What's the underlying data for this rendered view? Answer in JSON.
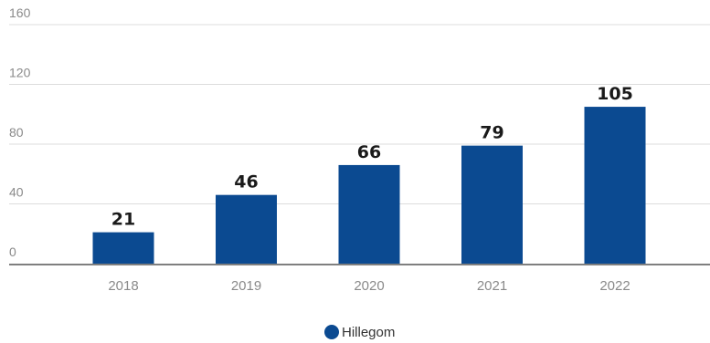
{
  "chart_data": {
    "type": "bar",
    "categories": [
      "2018",
      "2019",
      "2020",
      "2021",
      "2022"
    ],
    "series": [
      {
        "name": "Hillegom",
        "values": [
          21,
          46,
          66,
          79,
          105
        ],
        "color": "#0b4a91"
      }
    ],
    "y_ticks": [
      "0",
      "40",
      "80",
      "120",
      "160"
    ],
    "ylim": [
      0,
      160
    ],
    "title": "",
    "xlabel": "",
    "ylabel": "",
    "grid": true,
    "legend_position": "bottom-center",
    "gridline_color": "#dddddd",
    "axis_color": "#555555"
  }
}
